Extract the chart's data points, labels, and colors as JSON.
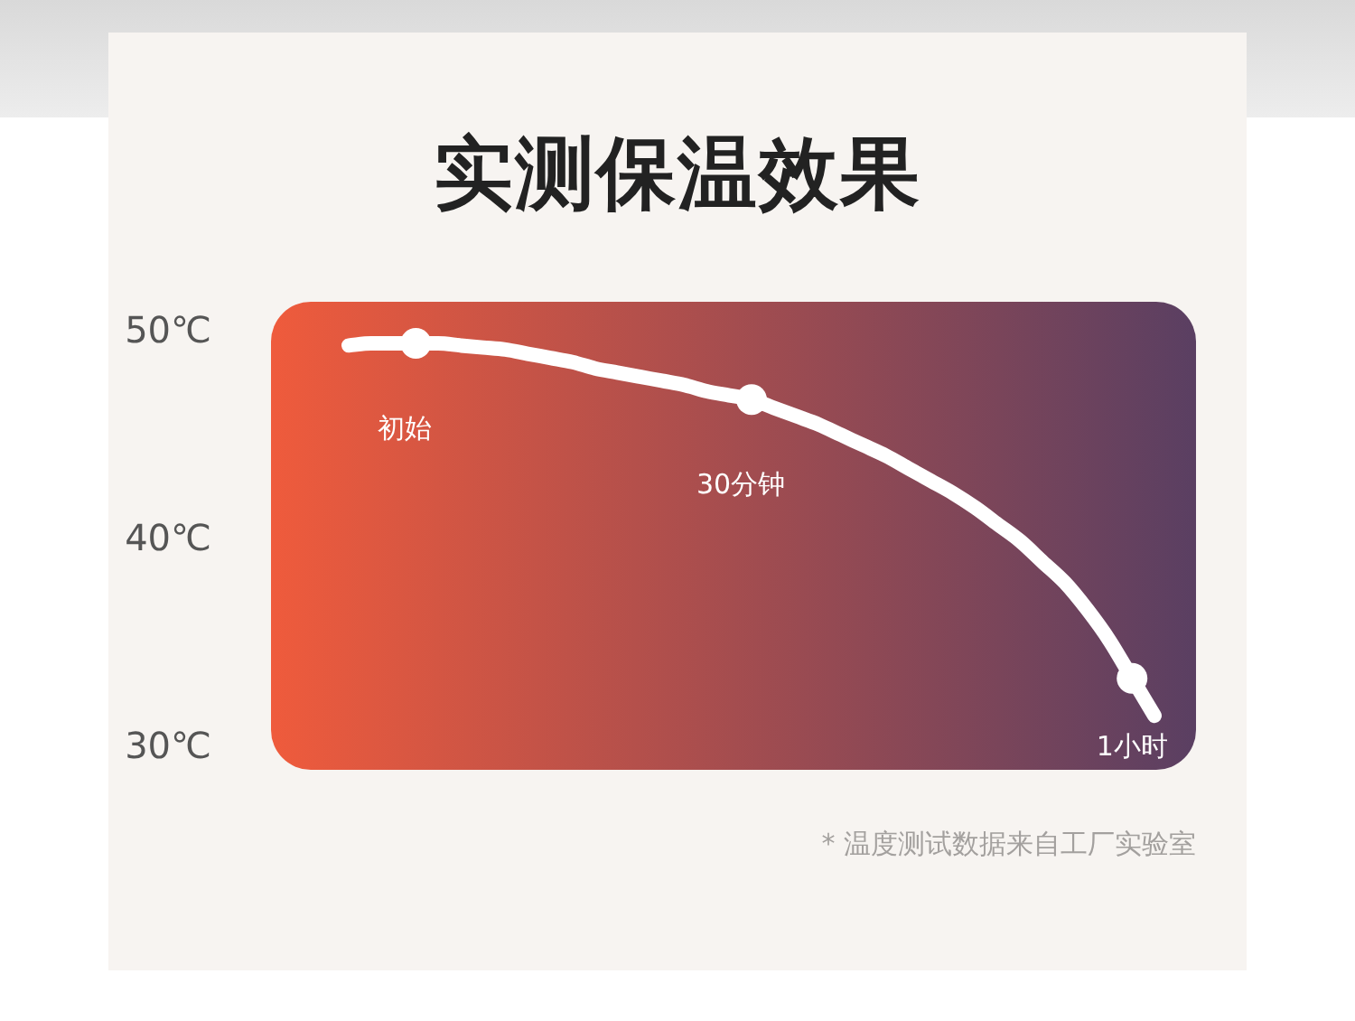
{
  "chart_data": {
    "type": "line",
    "title": "实测保温效果",
    "categories": [
      null,
      null,
      null,
      null,
      null,
      null,
      null,
      null,
      null,
      null,
      null,
      null,
      null,
      null,
      null,
      null,
      null,
      null,
      null,
      null,
      null,
      null,
      null,
      null,
      null,
      null,
      null,
      null,
      null,
      null,
      null,
      null,
      null,
      null,
      null,
      null,
      null
    ],
    "series": [
      {
        "color": "#ffffff",
        "marker": "none",
        "values": [
          49.4,
          49.5,
          49.5,
          49.5,
          49.5,
          49.4,
          49.3,
          49.2,
          49.0,
          48.8,
          48.6,
          48.3,
          48.1,
          47.9,
          47.7,
          47.5,
          47.2,
          47.0,
          46.8,
          46.4,
          46.0,
          45.6,
          45.1,
          44.6,
          44.1,
          43.5,
          42.9,
          42.3,
          41.6,
          40.8,
          40.0,
          39.0,
          38.0,
          36.7,
          35.2,
          33.4,
          31.6
        ]
      },
      {
        "type": "scatter",
        "color": "#ffffff",
        "values": [
          null,
          null,
          null,
          49.5,
          null,
          null,
          null,
          null,
          null,
          null,
          null,
          null,
          null,
          null,
          null,
          null,
          null,
          null,
          46.8,
          null,
          null,
          null,
          null,
          null,
          null,
          null,
          null,
          null,
          null,
          null,
          null,
          null,
          null,
          null,
          null,
          33.4,
          null
        ]
      }
    ],
    "ylim": [
      29,
      51.5
    ],
    "yticks": [
      {
        "value": 30,
        "label": "30℃"
      },
      {
        "value": 40,
        "label": "40℃"
      },
      {
        "value": 50,
        "label": "50℃"
      }
    ],
    "marker": "circle",
    "line_style": "solid",
    "annotations": [
      {
        "text": "初始",
        "y": 49.5
      },
      {
        "text": "30分钟",
        "y": 46.8
      },
      {
        "text": "1小时",
        "y": 33.4
      },
      "* 温度测试数据来自工厂实验室"
    ]
  }
}
